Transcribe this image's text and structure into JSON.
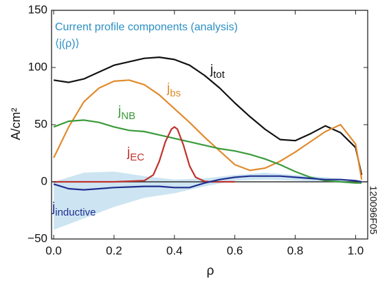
{
  "chart_data": {
    "type": "line",
    "title": "Current profile components (analysis)",
    "subtitle": "⟨j(ρ)⟩",
    "title_color": "#2a8fc4",
    "xlabel": "ρ",
    "ylabel": "A/cm²",
    "annotation": "120096F05",
    "series_symbol": "j",
    "xlim": [
      -0.007,
      1.04
    ],
    "ylim": [
      -50,
      150
    ],
    "xticks": [
      {
        "value": 0,
        "label": "0.0"
      },
      {
        "value": 0.2,
        "label": "0.2"
      },
      {
        "value": 0.4,
        "label": "0.4"
      },
      {
        "value": 0.6,
        "label": "0.6"
      },
      {
        "value": 0.8,
        "label": "0.8"
      },
      {
        "value": 1,
        "label": "1.0"
      }
    ],
    "yticks": [
      {
        "value": -50,
        "label": "−50"
      },
      0,
      50,
      100,
      150
    ],
    "zero_line": true,
    "grid": false,
    "x": [
      0,
      0.05,
      0.1,
      0.15,
      0.2,
      0.25,
      0.3,
      0.35,
      0.4,
      0.45,
      0.5,
      0.55,
      0.6,
      0.65,
      0.7,
      0.75,
      0.8,
      0.85,
      0.9,
      0.95,
      1.0,
      1.02
    ],
    "band": {
      "color": "#cde5f2",
      "x": [
        0,
        0.1,
        0.2,
        0.3,
        0.4,
        0.5,
        0.6,
        0.7,
        0.8,
        0.9,
        1.0
      ],
      "upper": [
        0,
        8,
        9,
        5,
        2,
        3,
        6,
        8,
        6,
        4,
        1
      ],
      "lower": [
        -42,
        -32,
        -22,
        -14,
        -10,
        -4,
        1,
        2,
        1,
        0,
        0
      ]
    },
    "series": [
      {
        "name": "tot",
        "color": "#111111",
        "values": [
          89,
          87,
          90,
          96,
          102,
          105,
          108,
          109,
          107,
          102,
          93,
          82,
          69,
          57,
          46,
          37,
          36,
          42,
          49,
          43,
          30,
          6
        ]
      },
      {
        "name": "bs",
        "color": "#e08a2c",
        "values": [
          21,
          48,
          70,
          82,
          88,
          89,
          85,
          76,
          64,
          52,
          39,
          27,
          15,
          10,
          12,
          18,
          26,
          35,
          44,
          50,
          33,
          2
        ]
      },
      {
        "name": "NB",
        "color": "#3a9a3a",
        "values": [
          48,
          53,
          54,
          52,
          48,
          45,
          44,
          41,
          38,
          35,
          32,
          29,
          27,
          24,
          20,
          15,
          9,
          4,
          1,
          0,
          -1,
          -1
        ]
      },
      {
        "name": "EC",
        "color": "#c0312b",
        "x": [
          0,
          0.2,
          0.3,
          0.33,
          0.35,
          0.37,
          0.39,
          0.4,
          0.41,
          0.43,
          0.45,
          0.47,
          0.5,
          0.52,
          0.6
        ],
        "values": [
          0,
          0,
          1,
          6,
          18,
          35,
          46,
          48,
          46,
          32,
          14,
          4,
          0.5,
          0,
          0
        ]
      },
      {
        "name": "inductive",
        "color": "#1f2f8f",
        "values": [
          -2,
          -6,
          -7,
          -6,
          -5,
          -4.5,
          -4,
          -4,
          -5,
          -5,
          -1,
          2,
          4,
          5,
          5,
          5,
          4,
          3,
          2,
          2,
          1,
          0
        ]
      }
    ]
  }
}
